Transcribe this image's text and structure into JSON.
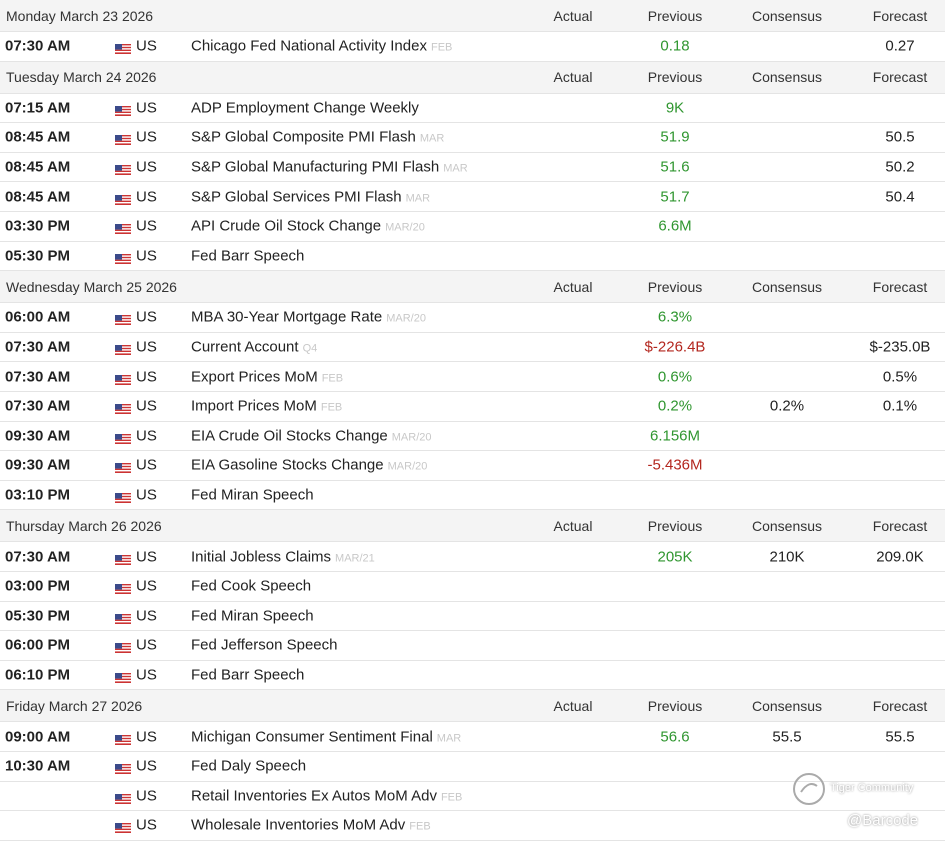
{
  "header": {
    "columns": [
      "Actual",
      "Previous",
      "Consensus",
      "Forecast"
    ]
  },
  "days": [
    {
      "date": "Monday March 23 2026",
      "rows": [
        {
          "time": "07:30 AM",
          "country": "US",
          "event": "Chicago Fed National Activity Index",
          "period": "FEB",
          "previous": "0.18",
          "forecast": "0.27"
        }
      ]
    },
    {
      "date": "Tuesday March 24 2026",
      "rows": [
        {
          "time": "07:15 AM",
          "country": "US",
          "event": "ADP Employment Change Weekly",
          "previous": "9K"
        },
        {
          "time": "08:45 AM",
          "country": "US",
          "event": "S&P Global Composite PMI Flash",
          "period": "MAR",
          "previous": "51.9",
          "forecast": "50.5"
        },
        {
          "time": "08:45 AM",
          "country": "US",
          "event": "S&P Global Manufacturing PMI Flash",
          "period": "MAR",
          "previous": "51.6",
          "forecast": "50.2"
        },
        {
          "time": "08:45 AM",
          "country": "US",
          "event": "S&P Global Services PMI Flash",
          "period": "MAR",
          "previous": "51.7",
          "forecast": "50.4"
        },
        {
          "time": "03:30 PM",
          "country": "US",
          "event": "API Crude Oil Stock Change",
          "period": "MAR/20",
          "previous": "6.6M"
        },
        {
          "time": "05:30 PM",
          "country": "US",
          "event": "Fed Barr Speech"
        }
      ]
    },
    {
      "date": "Wednesday March 25 2026",
      "rows": [
        {
          "time": "06:00 AM",
          "country": "US",
          "event": "MBA 30-Year Mortgage Rate",
          "period": "MAR/20",
          "previous": "6.3%"
        },
        {
          "time": "07:30 AM",
          "country": "US",
          "event": "Current Account",
          "period": "Q4",
          "previous": "$-226.4B",
          "forecast": "$-235.0B"
        },
        {
          "time": "07:30 AM",
          "country": "US",
          "event": "Export Prices MoM",
          "period": "FEB",
          "previous": "0.6%",
          "forecast": "0.5%"
        },
        {
          "time": "07:30 AM",
          "country": "US",
          "event": "Import Prices MoM",
          "period": "FEB",
          "previous": "0.2%",
          "consensus": "0.2%",
          "forecast": "0.1%"
        },
        {
          "time": "09:30 AM",
          "country": "US",
          "event": "EIA Crude Oil Stocks Change",
          "period": "MAR/20",
          "previous": "6.156M"
        },
        {
          "time": "09:30 AM",
          "country": "US",
          "event": "EIA Gasoline Stocks Change",
          "period": "MAR/20",
          "previous": "-5.436M"
        },
        {
          "time": "03:10 PM",
          "country": "US",
          "event": "Fed Miran Speech"
        }
      ]
    },
    {
      "date": "Thursday March 26 2026",
      "rows": [
        {
          "time": "07:30 AM",
          "country": "US",
          "event": "Initial Jobless Claims",
          "period": "MAR/21",
          "previous": "205K",
          "consensus": "210K",
          "forecast": "209.0K"
        },
        {
          "time": "03:00 PM",
          "country": "US",
          "event": "Fed Cook Speech"
        },
        {
          "time": "05:30 PM",
          "country": "US",
          "event": "Fed Miran Speech"
        },
        {
          "time": "06:00 PM",
          "country": "US",
          "event": "Fed Jefferson Speech"
        },
        {
          "time": "06:10 PM",
          "country": "US",
          "event": "Fed Barr Speech"
        }
      ]
    },
    {
      "date": "Friday March 27 2026",
      "rows": [
        {
          "time": "09:00 AM",
          "country": "US",
          "event": "Michigan Consumer Sentiment Final",
          "period": "MAR",
          "previous": "56.6",
          "consensus": "55.5",
          "forecast": "55.5"
        },
        {
          "time": "10:30 AM",
          "country": "US",
          "event": "Fed Daly Speech"
        },
        {
          "country": "US",
          "event": "Retail Inventories Ex Autos MoM Adv",
          "period": "FEB"
        },
        {
          "country": "US",
          "event": "Wholesale Inventories MoM Adv",
          "period": "FEB"
        }
      ]
    }
  ],
  "watermark": {
    "brand": "Tiger Community",
    "handle": "@Barcode"
  }
}
